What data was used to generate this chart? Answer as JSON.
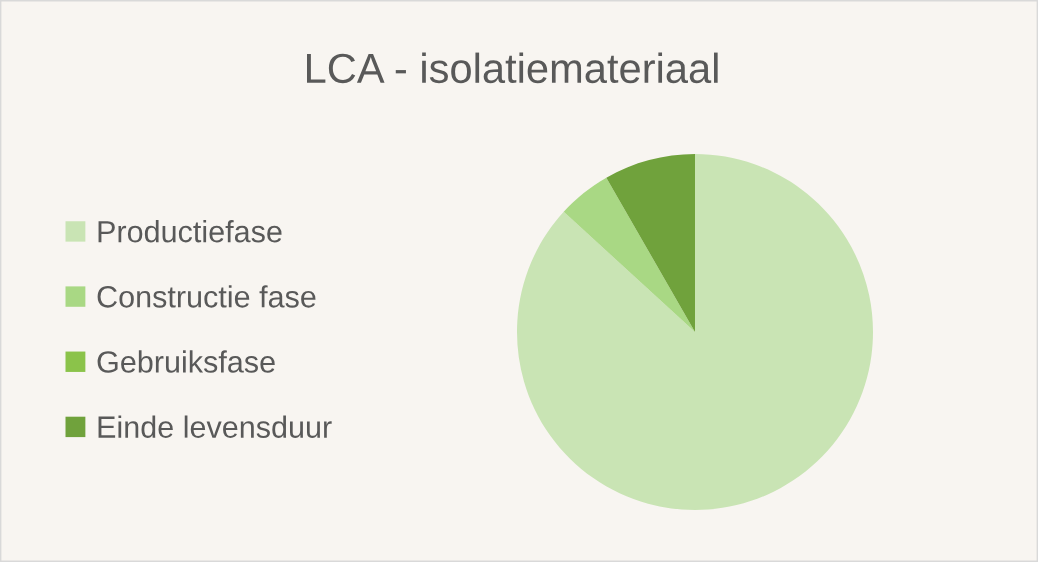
{
  "chart_data": {
    "type": "pie",
    "title": "LCA - isolatiemateriaal",
    "categories": [
      "Productiefase",
      "Constructie fase",
      "Gebruiksfase",
      "Einde levensduur"
    ],
    "values": [
      86.8,
      4.9,
      0,
      8.3
    ],
    "colors": [
      "#c9e4b4",
      "#a9d884",
      "#8bc34a",
      "#70a23c"
    ],
    "legend": "left"
  }
}
